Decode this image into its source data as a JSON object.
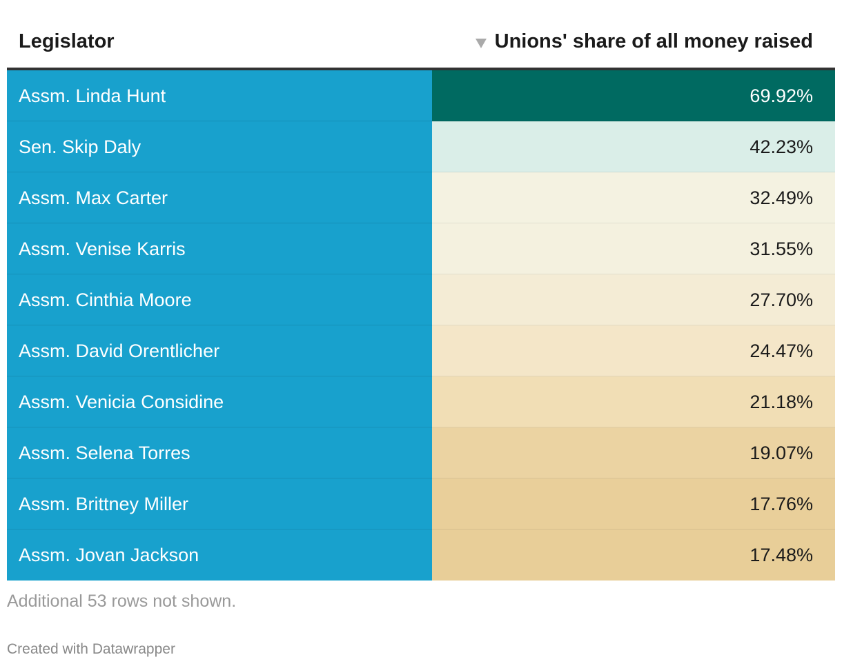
{
  "header": {
    "col_legislator": "Legislator",
    "col_share": "Unions' share of all money raised",
    "sort_icon": "sort-descending-icon"
  },
  "colors": {
    "name_cell": "#18a1cd",
    "high_value": "#006a61",
    "low_value": "#e8cf98"
  },
  "chart_data": {
    "type": "table",
    "columns": [
      "Legislator",
      "Unions' share of all money raised"
    ],
    "sorted_by": "Unions' share of all money raised",
    "sort_order": "descending",
    "rows": [
      {
        "legislator": "Assm. Linda Hunt",
        "share": "69.92%",
        "value": 69.92,
        "color": "#006a61",
        "text_color": "#ffffff"
      },
      {
        "legislator": "Sen. Skip Daly",
        "share": "42.23%",
        "value": 42.23,
        "color": "#daeee8",
        "text_color": "#1a1a1a"
      },
      {
        "legislator": "Assm. Max Carter",
        "share": "32.49%",
        "value": 32.49,
        "color": "#f4f2e1",
        "text_color": "#1a1a1a"
      },
      {
        "legislator": "Assm. Venise Karris",
        "share": "31.55%",
        "value": 31.55,
        "color": "#f4f1df",
        "text_color": "#1a1a1a"
      },
      {
        "legislator": "Assm. Cinthia Moore",
        "share": "27.70%",
        "value": 27.7,
        "color": "#f4ecd5",
        "text_color": "#1a1a1a"
      },
      {
        "legislator": "Assm. David Orentlicher",
        "share": "24.47%",
        "value": 24.47,
        "color": "#f4e6c8",
        "text_color": "#1a1a1a"
      },
      {
        "legislator": "Assm. Venicia Considine",
        "share": "21.18%",
        "value": 21.18,
        "color": "#f1deb5",
        "text_color": "#1a1a1a"
      },
      {
        "legislator": "Assm. Selena Torres",
        "share": "19.07%",
        "value": 19.07,
        "color": "#ebd3a2",
        "text_color": "#1a1a1a"
      },
      {
        "legislator": "Assm. Brittney Miller",
        "share": "17.76%",
        "value": 17.76,
        "color": "#e9cf9a",
        "text_color": "#1a1a1a"
      },
      {
        "legislator": "Assm. Jovan Jackson",
        "share": "17.48%",
        "value": 17.48,
        "color": "#e8ce98",
        "text_color": "#1a1a1a"
      }
    ]
  },
  "footer": {
    "note": "Additional 53 rows not shown.",
    "credit": "Created with Datawrapper"
  }
}
